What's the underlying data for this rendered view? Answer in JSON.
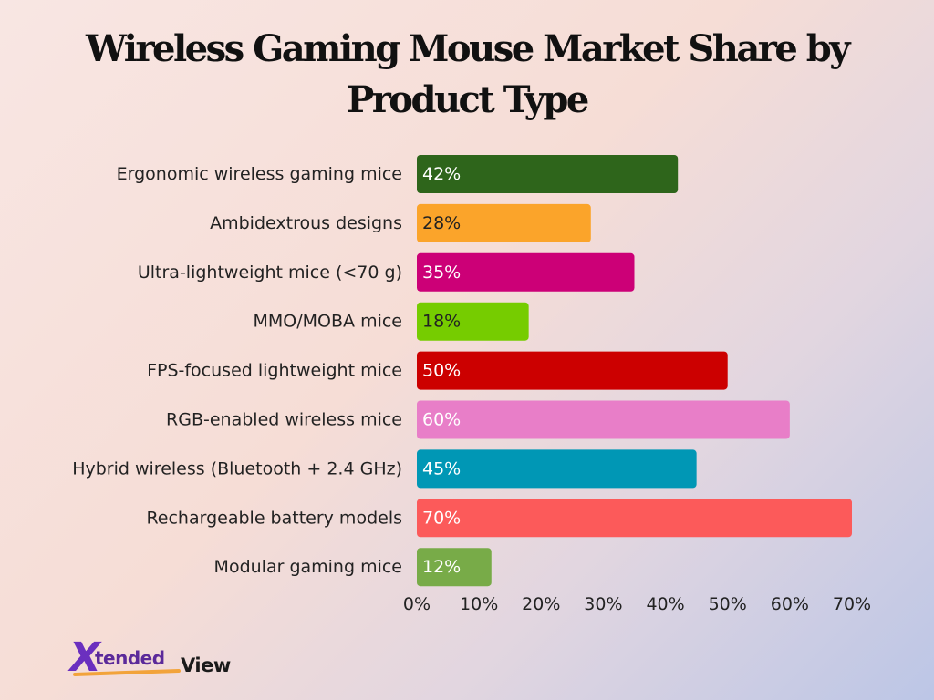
{
  "title_lines": [
    "Wireless Gaming Mouse Market Share by",
    "Product Type"
  ],
  "logo": {
    "mark": "X",
    "part1": "tended",
    "part2": "View"
  },
  "chart_data": {
    "type": "bar",
    "orientation": "horizontal",
    "title": "Wireless Gaming Mouse Market Share by Product Type",
    "xlabel": "",
    "ylabel": "",
    "xlim": [
      0,
      70
    ],
    "xticks": [
      0,
      10,
      20,
      30,
      40,
      50,
      60,
      70
    ],
    "xtick_labels": [
      "0%",
      "10%",
      "20%",
      "30%",
      "40%",
      "50%",
      "60%",
      "70%"
    ],
    "grid": false,
    "legend": "none",
    "categories": [
      "Ergonomic wireless gaming mice",
      "Ambidextrous designs",
      "Ultra-lightweight mice (<70 g)",
      "MMO/MOBA mice",
      "FPS-focused lightweight mice",
      "RGB-enabled wireless mice",
      "Hybrid wireless (Bluetooth + 2.4 GHz)",
      "Rechargeable battery models",
      "Modular gaming mice"
    ],
    "values": [
      42,
      28,
      35,
      18,
      50,
      60,
      45,
      70,
      12
    ],
    "value_labels": [
      "42%",
      "28%",
      "35%",
      "18%",
      "50%",
      "60%",
      "45%",
      "70%",
      "12%"
    ],
    "colors": [
      "#2e651b",
      "#fba42a",
      "#cc0077",
      "#76cc00",
      "#cc0000",
      "#e87ec8",
      "#0097b5",
      "#fc5a5a",
      "#78ab48"
    ],
    "label_colors": [
      "#ffffff",
      "#222222",
      "#ffffff",
      "#222222",
      "#ffffff",
      "#ffffff",
      "#ffffff",
      "#ffffff",
      "#ffffff"
    ]
  }
}
